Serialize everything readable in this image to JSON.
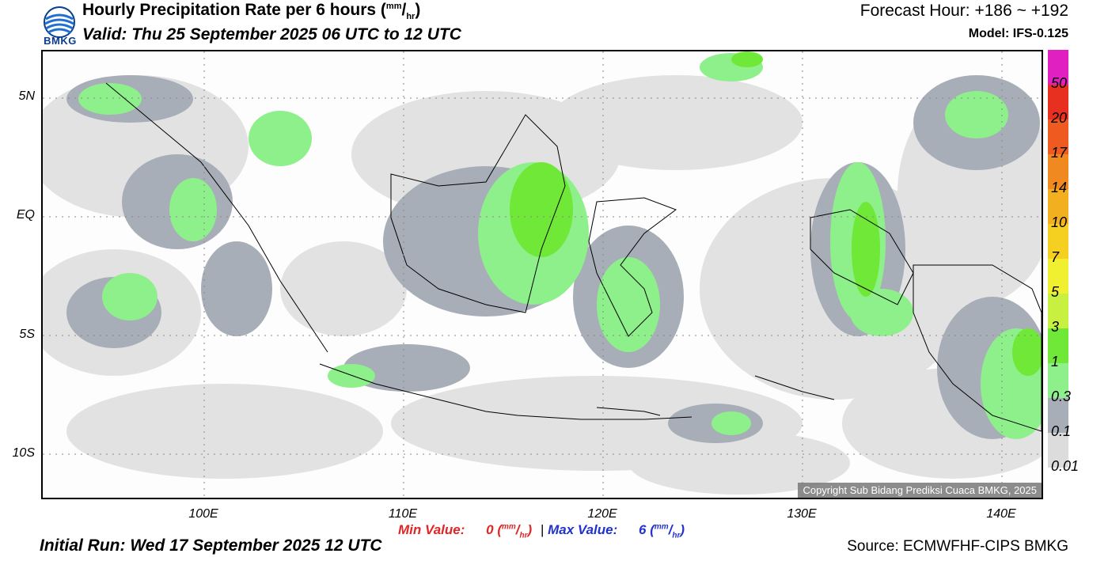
{
  "header": {
    "logo_text": "BMKG",
    "title": "Hourly Precipitation Rate per 6 hours",
    "title_unit_num": "mm",
    "title_unit_den": "hr",
    "valid": "Valid: Thu 25 September 2025 06 UTC to 12 UTC",
    "forecast_hour": "Forecast Hour: +186 ~ +192",
    "model": "Model: IFS-0.125"
  },
  "axes": {
    "lat_labels": [
      "5N",
      "EQ",
      "5S",
      "10S"
    ],
    "lon_labels": [
      "100E",
      "110E",
      "120E",
      "130E",
      "140E"
    ]
  },
  "colorbar": {
    "labels": [
      "50",
      "20",
      "17",
      "14",
      "10",
      "7",
      "5",
      "3",
      "1",
      "0.3",
      "0.1",
      "0.01"
    ],
    "colors": [
      "#e020c0",
      "#e83020",
      "#ee5a20",
      "#f08a20",
      "#f2b020",
      "#f5d020",
      "#f0f030",
      "#c8f040",
      "#70e838",
      "#8ef08a",
      "#a8aeb8",
      "#dcdcdc"
    ]
  },
  "footer": {
    "copyright": "Copyright Sub Bidang Prediksi Cuaca BMKG, 2025",
    "min_label": "Min Value:",
    "min_value": "0",
    "max_label": "Max Value:",
    "max_value": "6",
    "unit_num": "mm",
    "unit_den": "hr",
    "separator": "|",
    "initial_run": "Initial Run: Wed 17 September 2025 12 UTC",
    "source": "Source: ECMWFHF-CIPS BMKG"
  }
}
